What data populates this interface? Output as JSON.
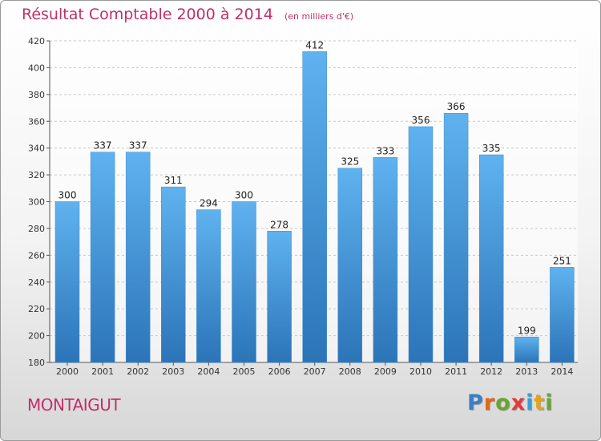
{
  "header": {
    "title": "Résultat Comptable 2000 à 2014",
    "subtitle": "(en milliers d'€)"
  },
  "footer": {
    "town": "MONTAIGUT",
    "logo": "Proxiti",
    "logo_letters": [
      {
        "ch": "P",
        "color": "#3b7fc4"
      },
      {
        "ch": "r",
        "color": "#e0681a"
      },
      {
        "ch": "o",
        "color": "#6aa531"
      },
      {
        "ch": "x",
        "color": "#e03a3a"
      },
      {
        "ch": "i",
        "color": "#3b9fd6"
      },
      {
        "ch": "t",
        "color": "#e6a31a"
      },
      {
        "ch": "i",
        "color": "#6aa531"
      }
    ]
  },
  "colors": {
    "bar_top": "#5fb2ef",
    "bar_bottom": "#2b74b8",
    "grid": "#c8c8c8"
  },
  "chart_data": {
    "type": "bar",
    "categories": [
      "2000",
      "2001",
      "2002",
      "2003",
      "2004",
      "2005",
      "2006",
      "2007",
      "2008",
      "2009",
      "2010",
      "2011",
      "2012",
      "2013",
      "2014"
    ],
    "values": [
      300,
      337,
      337,
      311,
      294,
      300,
      278,
      412,
      325,
      333,
      356,
      366,
      335,
      199,
      251
    ],
    "ylim": [
      180,
      420
    ],
    "yticks": [
      180,
      200,
      220,
      240,
      260,
      280,
      300,
      320,
      340,
      360,
      380,
      400,
      420
    ],
    "grid": true
  }
}
